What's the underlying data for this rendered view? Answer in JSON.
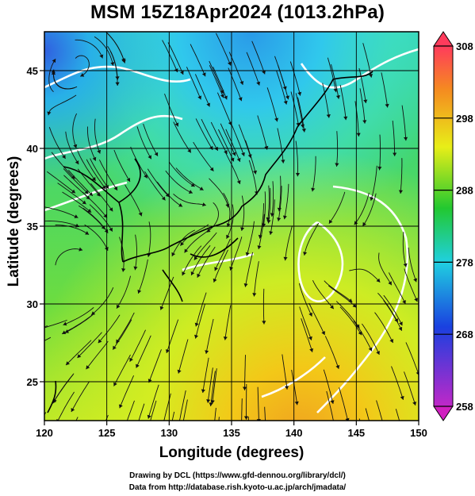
{
  "title": "MSM 15Z18Apr2024 (1013.2hPa)",
  "x_axis": {
    "label": "Longitude (degrees)",
    "ticks": [
      "120",
      "125",
      "130",
      "135",
      "140",
      "145",
      "150"
    ],
    "range": [
      120,
      150
    ]
  },
  "y_axis": {
    "label": "Latitude  (degrees)",
    "ticks": [
      "25",
      "30",
      "35",
      "40",
      "45"
    ],
    "range": [
      22.5,
      47.5
    ]
  },
  "colorbar": {
    "ticks": [
      "308",
      "298",
      "288",
      "278",
      "268",
      "258"
    ],
    "range": [
      258,
      308
    ],
    "colors": [
      "#ff3b5c",
      "#f5a020",
      "#e8ee18",
      "#22c830",
      "#20d0e0",
      "#1a40e0",
      "#c028c8"
    ]
  },
  "credits": {
    "line1": "Drawing by DCL (https://www.gfd-dennou.org/library/dcl/)",
    "line2": "Data from http://database.rish.kyoto-u.ac.jp/arch/jmadata/"
  }
}
